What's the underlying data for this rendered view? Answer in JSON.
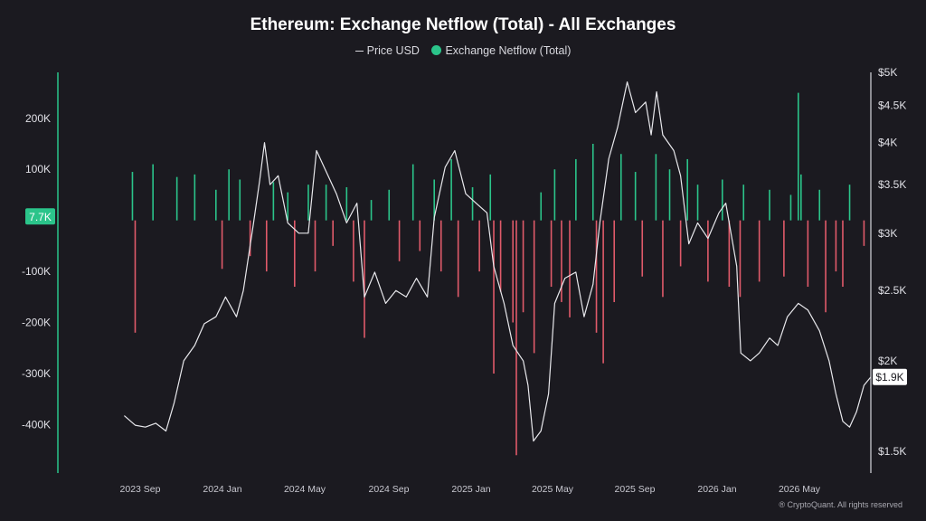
{
  "chart_data": {
    "type": "bar",
    "title": "Ethereum: Exchange Netflow (Total) - All Exchanges",
    "legend_placement": "top-center",
    "grid": false,
    "series": [
      {
        "name": "Price USD",
        "type": "line",
        "axis": "right",
        "color": "#e8e8ec"
      },
      {
        "name": "Exchange Netflow (Total)",
        "type": "bar",
        "axis": "left",
        "color": "#2bc48a",
        "negative_color": "#e05a6a"
      }
    ],
    "x_ticks": [
      "2023 Sep",
      "2024 Jan",
      "2024 May",
      "2024 Sep",
      "2025 Jan",
      "2025 May",
      "2025 Sep",
      "2026 Jan",
      "2026 May"
    ],
    "x_range": [
      "2023-08-01",
      "2026-08-15"
    ],
    "left_axis": {
      "ticks": [
        "200K",
        "100K",
        "-100K",
        "-200K",
        "-300K",
        "-400K"
      ],
      "tick_values": [
        200000,
        100000,
        -100000,
        -200000,
        -300000,
        -400000
      ],
      "range": [
        -495000,
        290000
      ],
      "highlight_label": "7.7K",
      "highlight_value": 7700
    },
    "right_axis": {
      "scale": "log",
      "ticks": [
        "$5K",
        "$4.5K",
        "$4K",
        "$3.5K",
        "$3K",
        "$2.5K",
        "$2K",
        "$1.5K"
      ],
      "tick_values": [
        5000,
        4500,
        4000,
        3500,
        3000,
        2500,
        2000,
        1500
      ],
      "range": [
        1400,
        5000
      ],
      "highlight_label": "$1.9K",
      "highlight_value": 1900
    },
    "price_points": [
      [
        "2023-08-20",
        1680
      ],
      [
        "2023-09-05",
        1630
      ],
      [
        "2023-09-20",
        1620
      ],
      [
        "2023-10-05",
        1640
      ],
      [
        "2023-10-20",
        1600
      ],
      [
        "2023-11-01",
        1750
      ],
      [
        "2023-11-15",
        2000
      ],
      [
        "2023-12-01",
        2100
      ],
      [
        "2023-12-15",
        2250
      ],
      [
        "2024-01-01",
        2300
      ],
      [
        "2024-01-15",
        2450
      ],
      [
        "2024-01-31",
        2300
      ],
      [
        "2024-02-10",
        2500
      ],
      [
        "2024-02-25",
        3100
      ],
      [
        "2024-03-05",
        3550
      ],
      [
        "2024-03-12",
        4000
      ],
      [
        "2024-03-20",
        3500
      ],
      [
        "2024-04-01",
        3600
      ],
      [
        "2024-04-15",
        3100
      ],
      [
        "2024-05-01",
        3000
      ],
      [
        "2024-05-15",
        3000
      ],
      [
        "2024-05-27",
        3900
      ],
      [
        "2024-06-10",
        3650
      ],
      [
        "2024-06-25",
        3400
      ],
      [
        "2024-07-10",
        3100
      ],
      [
        "2024-07-25",
        3300
      ],
      [
        "2024-08-05",
        2450
      ],
      [
        "2024-08-20",
        2650
      ],
      [
        "2024-09-05",
        2400
      ],
      [
        "2024-09-20",
        2500
      ],
      [
        "2024-10-05",
        2450
      ],
      [
        "2024-10-20",
        2600
      ],
      [
        "2024-11-05",
        2450
      ],
      [
        "2024-11-15",
        3150
      ],
      [
        "2024-12-01",
        3700
      ],
      [
        "2024-12-15",
        3900
      ],
      [
        "2024-12-31",
        3400
      ],
      [
        "2025-01-15",
        3300
      ],
      [
        "2025-01-31",
        3200
      ],
      [
        "2025-02-10",
        2700
      ],
      [
        "2025-02-25",
        2400
      ],
      [
        "2025-03-10",
        2100
      ],
      [
        "2025-03-25",
        2000
      ],
      [
        "2025-04-01",
        1850
      ],
      [
        "2025-04-09",
        1550
      ],
      [
        "2025-04-20",
        1600
      ],
      [
        "2025-05-01",
        1800
      ],
      [
        "2025-05-10",
        2400
      ],
      [
        "2025-05-25",
        2600
      ],
      [
        "2025-06-10",
        2650
      ],
      [
        "2025-06-22",
        2300
      ],
      [
        "2025-07-05",
        2550
      ],
      [
        "2025-07-15",
        3100
      ],
      [
        "2025-07-28",
        3800
      ],
      [
        "2025-08-10",
        4200
      ],
      [
        "2025-08-24",
        4850
      ],
      [
        "2025-09-05",
        4400
      ],
      [
        "2025-09-20",
        4550
      ],
      [
        "2025-09-28",
        4100
      ],
      [
        "2025-10-06",
        4700
      ],
      [
        "2025-10-15",
        4100
      ],
      [
        "2025-10-31",
        3900
      ],
      [
        "2025-11-10",
        3600
      ],
      [
        "2025-11-22",
        2900
      ],
      [
        "2025-12-05",
        3100
      ],
      [
        "2025-12-20",
        2950
      ],
      [
        "2026-01-05",
        3200
      ],
      [
        "2026-01-15",
        3300
      ],
      [
        "2026-01-31",
        2700
      ],
      [
        "2026-02-06",
        2050
      ],
      [
        "2026-02-20",
        2000
      ],
      [
        "2026-03-05",
        2050
      ],
      [
        "2026-03-20",
        2150
      ],
      [
        "2026-04-01",
        2100
      ],
      [
        "2026-04-15",
        2300
      ],
      [
        "2026-05-01",
        2400
      ],
      [
        "2026-05-15",
        2350
      ],
      [
        "2026-06-01",
        2200
      ],
      [
        "2026-06-15",
        2000
      ],
      [
        "2026-06-25",
        1800
      ],
      [
        "2026-07-05",
        1650
      ],
      [
        "2026-07-15",
        1620
      ],
      [
        "2026-07-25",
        1700
      ],
      [
        "2026-08-05",
        1850
      ],
      [
        "2026-08-15",
        1900
      ]
    ],
    "netflow_bars": [
      [
        "2023-09-01",
        95000
      ],
      [
        "2023-09-05",
        -220000
      ],
      [
        "2023-10-01",
        110000
      ],
      [
        "2023-11-05",
        85000
      ],
      [
        "2023-12-01",
        90000
      ],
      [
        "2024-01-01",
        60000
      ],
      [
        "2024-01-10",
        -95000
      ],
      [
        "2024-01-20",
        100000
      ],
      [
        "2024-02-05",
        80000
      ],
      [
        "2024-02-20",
        -70000
      ],
      [
        "2024-03-15",
        -100000
      ],
      [
        "2024-03-25",
        75000
      ],
      [
        "2024-04-15",
        55000
      ],
      [
        "2024-04-25",
        -130000
      ],
      [
        "2024-05-15",
        70000
      ],
      [
        "2024-05-25",
        -100000
      ],
      [
        "2024-06-10",
        70000
      ],
      [
        "2024-06-20",
        -50000
      ],
      [
        "2024-07-10",
        65000
      ],
      [
        "2024-07-20",
        -120000
      ],
      [
        "2024-08-05",
        -230000
      ],
      [
        "2024-08-15",
        40000
      ],
      [
        "2024-09-10",
        60000
      ],
      [
        "2024-09-25",
        -80000
      ],
      [
        "2024-10-15",
        110000
      ],
      [
        "2024-10-25",
        -60000
      ],
      [
        "2024-11-15",
        80000
      ],
      [
        "2024-11-25",
        -100000
      ],
      [
        "2024-12-10",
        120000
      ],
      [
        "2024-12-20",
        -150000
      ],
      [
        "2025-01-10",
        65000
      ],
      [
        "2025-01-20",
        -100000
      ],
      [
        "2025-02-05",
        90000
      ],
      [
        "2025-02-10",
        -300000
      ],
      [
        "2025-02-20",
        -140000
      ],
      [
        "2025-03-10",
        -200000
      ],
      [
        "2025-03-15",
        -460000
      ],
      [
        "2025-03-25",
        -180000
      ],
      [
        "2025-04-10",
        -260000
      ],
      [
        "2025-04-20",
        55000
      ],
      [
        "2025-05-05",
        -130000
      ],
      [
        "2025-05-10",
        100000
      ],
      [
        "2025-05-20",
        -160000
      ],
      [
        "2025-06-01",
        -190000
      ],
      [
        "2025-06-10",
        120000
      ],
      [
        "2025-07-05",
        150000
      ],
      [
        "2025-07-10",
        -220000
      ],
      [
        "2025-07-20",
        -280000
      ],
      [
        "2025-08-05",
        -160000
      ],
      [
        "2025-08-15",
        130000
      ],
      [
        "2025-09-05",
        95000
      ],
      [
        "2025-09-15",
        -110000
      ],
      [
        "2025-10-05",
        130000
      ],
      [
        "2025-10-15",
        -150000
      ],
      [
        "2025-10-25",
        100000
      ],
      [
        "2025-11-10",
        -90000
      ],
      [
        "2025-11-20",
        120000
      ],
      [
        "2025-12-05",
        70000
      ],
      [
        "2025-12-20",
        -120000
      ],
      [
        "2026-01-10",
        80000
      ],
      [
        "2026-01-20",
        -130000
      ],
      [
        "2026-02-05",
        -150000
      ],
      [
        "2026-02-10",
        70000
      ],
      [
        "2026-03-05",
        -120000
      ],
      [
        "2026-03-20",
        60000
      ],
      [
        "2026-04-10",
        -110000
      ],
      [
        "2026-04-20",
        50000
      ],
      [
        "2026-05-01",
        250000
      ],
      [
        "2026-05-05",
        90000
      ],
      [
        "2026-05-15",
        -130000
      ],
      [
        "2026-06-01",
        60000
      ],
      [
        "2026-06-10",
        -180000
      ],
      [
        "2026-06-25",
        -100000
      ],
      [
        "2026-07-05",
        -130000
      ],
      [
        "2026-07-15",
        70000
      ],
      [
        "2026-08-05",
        -50000
      ]
    ]
  },
  "footer": {
    "credit": "® CryptoQuant. All rights reserved"
  }
}
